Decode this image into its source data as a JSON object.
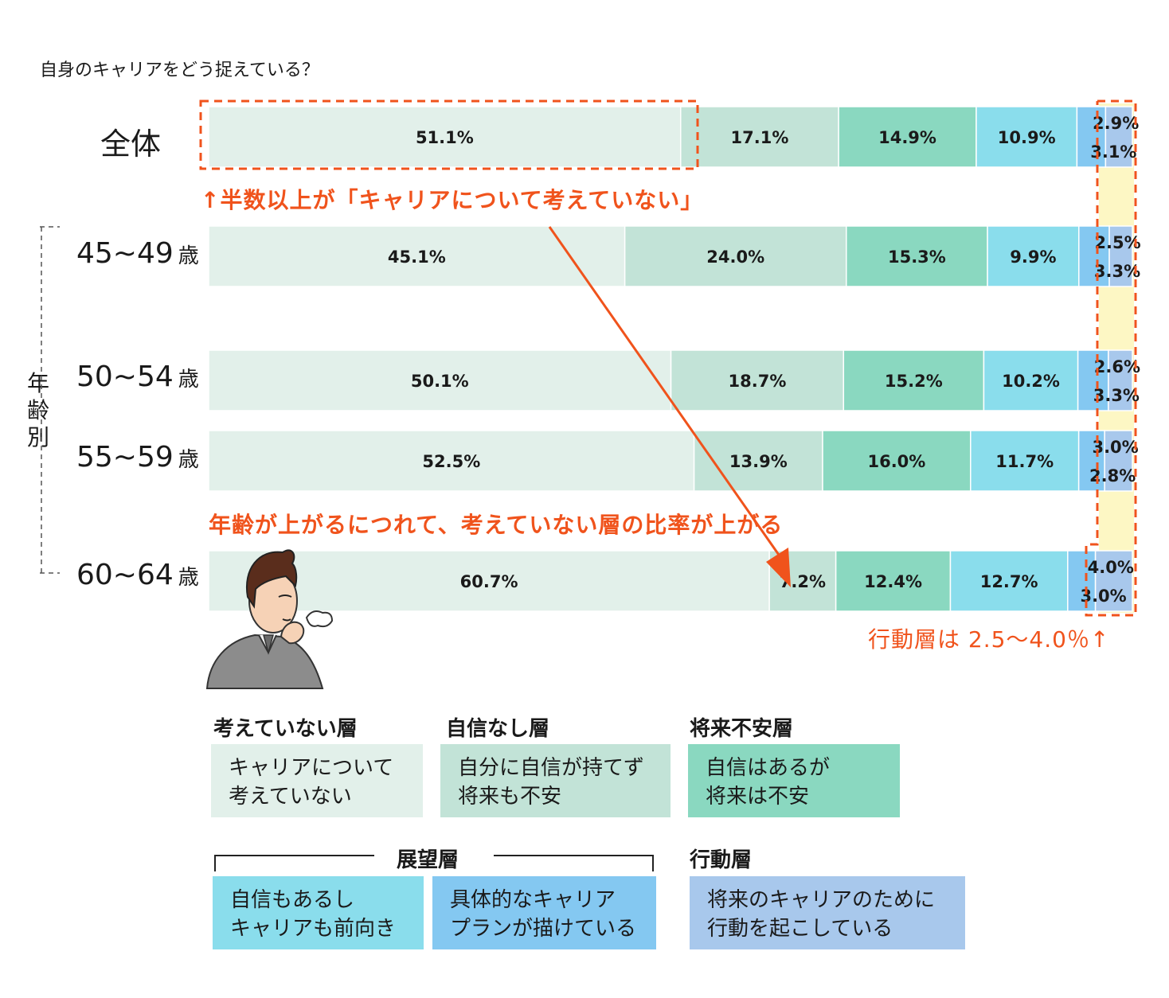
{
  "question": "自身のキャリアをどう捉えている？",
  "row_labels": {
    "total": "全体",
    "age_45": "45~49",
    "age_50": "50~54",
    "age_55": "55~59",
    "age_60": "60~64",
    "unit": "歳"
  },
  "age_group_label": [
    "年",
    "齢",
    "別"
  ],
  "notes": {
    "half_or_more": "↑半数以上が「キャリアについて考えていない」",
    "age_trend": "年齢が上がるにつれて、考えていない層の比率が上がる",
    "action_range": "行動層は 2.5〜4.0％↑"
  },
  "colors": {
    "not_thinking": "#e2f0ea",
    "no_confidence": "#c2e3d7",
    "future_anxiety": "#8ad8c0",
    "outlook_a": "#8addec",
    "outlook_b": "#84c8f1",
    "action": "#a8c8ec",
    "highlight_orange": "#f0531c",
    "highlight_yellow": "#fdf7c4"
  },
  "legend": {
    "not_thinking": {
      "title": "考えていない層",
      "lines": [
        "キャリアについて",
        "考えていない"
      ]
    },
    "no_confidence": {
      "title": "自信なし層",
      "lines": [
        "自分に自信が持てず",
        "将来も不安"
      ]
    },
    "future_anxiety": {
      "title": "将来不安層",
      "lines": [
        "自信はあるが",
        "将来は不安"
      ]
    },
    "outlook": {
      "title": "展望層"
    },
    "outlook_a": {
      "lines": [
        "自信もあるし",
        "キャリアも前向き"
      ]
    },
    "outlook_b": {
      "lines": [
        "具体的なキャリア",
        "プランが描けている"
      ]
    },
    "action": {
      "title": "行動層",
      "lines": [
        "将来のキャリアのために",
        "行動を起こしている"
      ]
    }
  },
  "chart_data": {
    "type": "bar",
    "orientation": "horizontal",
    "stacked": true,
    "title": "自身のキャリアをどう捉えている？",
    "categories": [
      "全体",
      "45~49歳",
      "50~54歳",
      "55~59歳",
      "60~64歳"
    ],
    "series": [
      {
        "name": "考えていない層",
        "values": [
          51.1,
          45.1,
          50.1,
          52.5,
          60.7
        ]
      },
      {
        "name": "自信なし層",
        "values": [
          17.1,
          24.0,
          18.7,
          13.9,
          7.2
        ]
      },
      {
        "name": "将来不安層",
        "values": [
          14.9,
          15.3,
          15.2,
          16.0,
          12.4
        ]
      },
      {
        "name": "展望層",
        "values": [
          10.9,
          9.9,
          10.2,
          11.7,
          12.7
        ]
      },
      {
        "name": "展望層",
        "values": [
          3.1,
          3.3,
          3.3,
          2.8,
          3.0
        ]
      },
      {
        "name": "行動層",
        "values": [
          2.9,
          2.5,
          2.6,
          3.0,
          4.0
        ]
      }
    ],
    "labels": [
      [
        "51.1%",
        "17.1%",
        "14.9%",
        "10.9%",
        "3.1%",
        "2.9%"
      ],
      [
        "45.1%",
        "24.0%",
        "15.3%",
        "9.9%",
        "3.3%",
        "2.5%"
      ],
      [
        "50.1%",
        "18.7%",
        "15.2%",
        "10.2%",
        "3.3%",
        "2.6%"
      ],
      [
        "52.5%",
        "13.9%",
        "16.0%",
        "11.7%",
        "2.8%",
        "3.0%"
      ],
      [
        "60.7%",
        "7.2%",
        "12.4%",
        "12.7%",
        "3.0%",
        "4.0%"
      ]
    ],
    "unit": "%",
    "legend": "bottom"
  }
}
